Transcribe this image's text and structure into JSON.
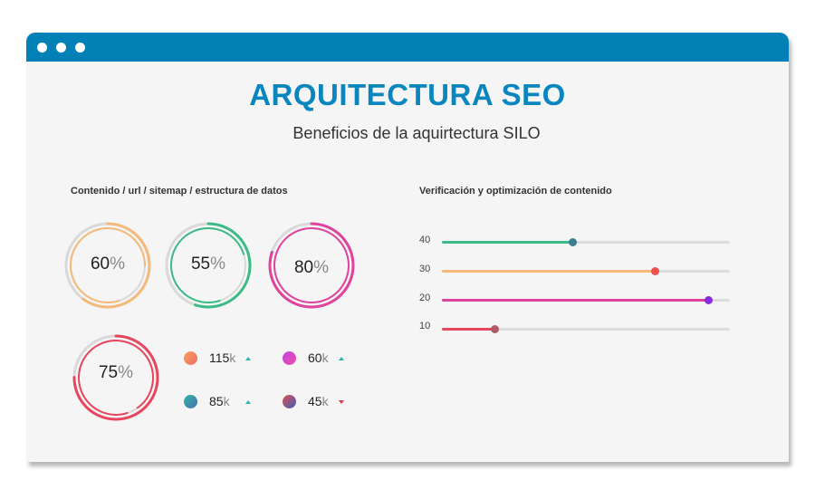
{
  "window": {
    "title": "ARQUITECTURA SEO",
    "subtitle": "Beneficios de la aquirtectura SILO"
  },
  "left_section": {
    "label": "Contenido / url  / sitemap  /  estructura de datos"
  },
  "right_section": {
    "label": "Verificación y optimización de contenido"
  },
  "rings": [
    {
      "value": "60",
      "unit": "%",
      "fraction": 0.6,
      "color": "#f5b97a"
    },
    {
      "value": "55",
      "unit": "%",
      "fraction": 0.55,
      "color": "#3dbb87"
    },
    {
      "value": "80",
      "unit": "%",
      "fraction": 0.8,
      "color": "#e0429e"
    },
    {
      "value": "75",
      "unit": "%",
      "fraction": 0.75,
      "color": "#e8465c"
    }
  ],
  "stats": [
    {
      "value": "115",
      "unit": "k",
      "trend": "up",
      "color_a": "#f7a15c",
      "color_b": "#f06b6b"
    },
    {
      "value": "60",
      "unit": "k",
      "trend": "up",
      "color_a": "#c042e8",
      "color_b": "#f04fa0"
    },
    {
      "value": "85",
      "unit": "k",
      "trend": "up",
      "color_a": "#2fb5a0",
      "color_b": "#4a6fb5"
    },
    {
      "value": "45",
      "unit": "k",
      "trend": "down",
      "color_a": "#e0504f",
      "color_b": "#3a5fb8"
    }
  ],
  "bars": [
    {
      "label": "40",
      "fraction": 0.455,
      "color": "#3dbb87",
      "knob": "#3a7f8f"
    },
    {
      "label": "30",
      "fraction": 0.74,
      "color": "#f5b97a",
      "knob": "#ee5050"
    },
    {
      "label": "20",
      "fraction": 0.925,
      "color": "#e0429e",
      "knob": "#8a2be2"
    },
    {
      "label": "10",
      "fraction": 0.185,
      "color": "#e8465c",
      "knob": "#b05a64"
    }
  ]
}
